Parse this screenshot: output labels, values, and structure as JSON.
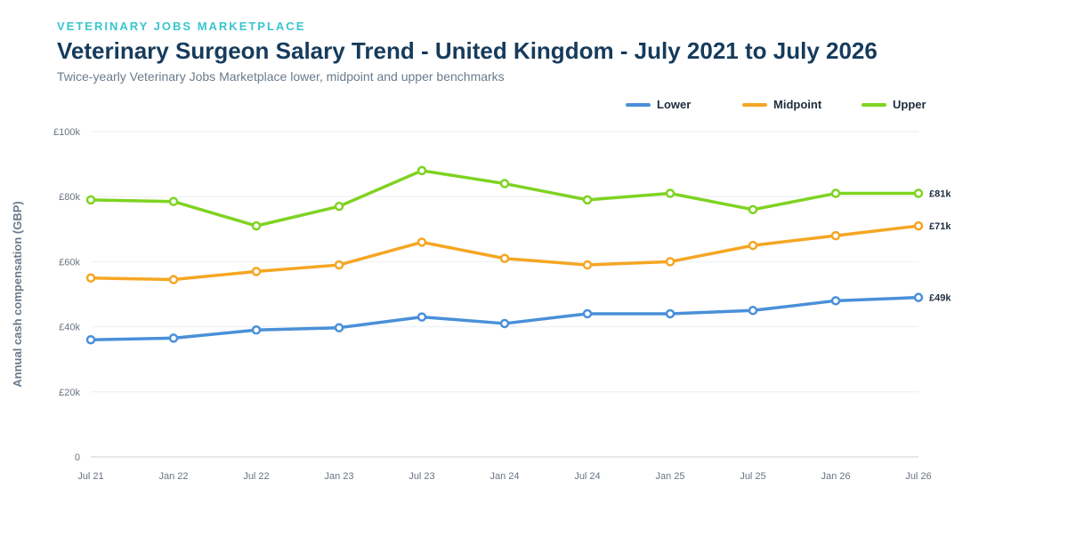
{
  "header": {
    "brand": "VETERINARY JOBS MARKETPLACE",
    "title": "Veterinary Surgeon Salary Trend - United Kingdom - July 2021 to July 2026",
    "subtitle": "Twice-yearly Veterinary Jobs Marketplace lower, midpoint and upper benchmarks"
  },
  "chart_data": {
    "type": "line",
    "categories": [
      "Jul 21",
      "Jan 22",
      "Jul 22",
      "Jan 23",
      "Jul 23",
      "Jan 24",
      "Jul 24",
      "Jan 25",
      "Jul 25",
      "Jan 26",
      "Jul 26"
    ],
    "ylabel": "Annual cash compensation (GBP)",
    "ylim": [
      0,
      100000
    ],
    "yticks": [
      0,
      20000,
      40000,
      60000,
      80000,
      100000
    ],
    "ytick_labels": [
      "0",
      "£20k",
      "£40k",
      "£60k",
      "£80k",
      "£100k"
    ],
    "grid": true,
    "legend_position": "top-right",
    "series": [
      {
        "name": "Lower",
        "color": "#4a90d9",
        "values": [
          36000,
          36500,
          39000,
          39700,
          43000,
          41000,
          44000,
          44000,
          45000,
          48000,
          49000
        ],
        "end_label": "£49k"
      },
      {
        "name": "Midpoint",
        "color": "#f5a623",
        "values": [
          55000,
          54500,
          57000,
          59000,
          66000,
          61000,
          59000,
          60000,
          65000,
          68000,
          71000
        ],
        "end_label": "£71k"
      },
      {
        "name": "Upper",
        "color": "#7ed321",
        "values": [
          79000,
          78500,
          71000,
          77000,
          88000,
          84000,
          79000,
          81000,
          76000,
          81000,
          81000
        ],
        "end_label": "£81k"
      }
    ]
  }
}
